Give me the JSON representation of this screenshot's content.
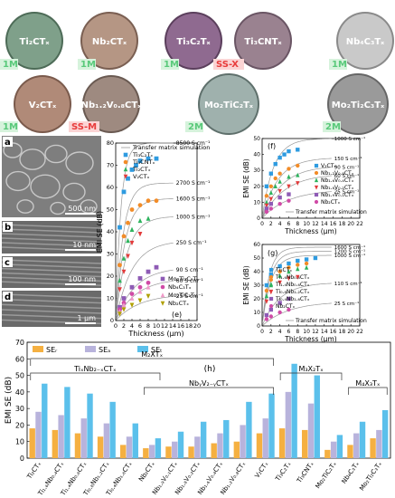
{
  "colors": {
    "blue": "#2e9be0",
    "orange": "#f28c28",
    "green": "#2db35d",
    "red": "#e23a3a",
    "purple": "#8e5bb5",
    "magenta": "#d04aa6",
    "pink": "#f09ac9",
    "olive": "#b0a000",
    "gray": "#888888",
    "bar_r": "#f5b041",
    "bar_a": "#b8b3dc",
    "bar_t": "#5bc0eb",
    "label_green": "#59c97a",
    "label_red": "#e83c3c"
  },
  "photos": {
    "items": [
      {
        "label": "Ti₂CTₓ",
        "tag": "1M",
        "fill": "#7fa08a",
        "edge": "#4d6b57"
      },
      {
        "label": "Nb₂CTₓ",
        "tag": "1M",
        "fill": "#b59684",
        "edge": "#7a5f52"
      },
      {
        "label": "Ti₃C₂Tₓ",
        "tag": "1M",
        "fill": "#8f6a90",
        "edge": "#5b3f5c"
      },
      {
        "label": "Ti₃CNTₓ",
        "tag": "SS-X",
        "fill": "#9a8290",
        "edge": "#6a5564"
      },
      {
        "label": "Nb₄C₃Tₓ",
        "tag": "1M",
        "fill": "#c9c9c9",
        "edge": "#8a8a8a"
      },
      {
        "label": "V₂CTₓ",
        "tag": "1M",
        "fill": "#b08a78",
        "edge": "#7a5a4c"
      },
      {
        "label": "Nb₁.₂V₀.₈CTₓ",
        "tag": "SS-M",
        "fill": "#9e8a80",
        "edge": "#6a5a52"
      },
      {
        "label": "Mo₂TiC₂Tₓ",
        "tag": "2M",
        "fill": "#9fb1ad",
        "edge": "#5f706c"
      },
      {
        "label": "Mo₂Ti₂C₃Tₓ",
        "tag": "2M",
        "fill": "#9a9a9a",
        "edge": "#666666"
      }
    ]
  },
  "sem": {
    "a": {
      "letter": "a",
      "scale": "500 nm"
    },
    "b": {
      "letter": "b",
      "scale": "10 nm"
    },
    "c": {
      "letter": "c",
      "scale": "100 nm"
    },
    "d": {
      "letter": "d",
      "scale": "1 μm"
    }
  },
  "chart_data": [
    {
      "panel": "e",
      "type": "scatter",
      "xlabel": "Thickness (μm)",
      "ylabel": "EMI SE (dB)",
      "xlim": [
        0,
        20
      ],
      "ylim": [
        0,
        80
      ],
      "xticks": [
        0,
        2,
        4,
        6,
        8,
        10,
        12,
        14,
        16,
        18,
        20
      ],
      "yticks": [
        0,
        10,
        20,
        30,
        40,
        50,
        60,
        70,
        80
      ],
      "legend_top": [
        "Transfer matrix simulation",
        "Ti₃C₂Tₓ",
        "Ti₃CNTₓ",
        "Ti₂CTₓ",
        "V₂CTₓ"
      ],
      "legend_bottom": [
        "Mo₂Ti₂C₃Tₓ",
        "Nb₄C₃Tₓ",
        "Mo₂TiC₂Tₓ",
        "Nb₂CTₓ"
      ],
      "curve_labels": [
        "8500 S cm⁻¹",
        "2700 S cm⁻¹",
        "1600 S cm⁻¹",
        "1000 S cm⁻¹",
        "250 S cm⁻¹",
        "90 S cm⁻¹",
        "60 S cm⁻¹",
        "25 S cm⁻¹"
      ],
      "series": [
        {
          "name": "Ti₃C₂Tₓ",
          "color": "#2e9be0",
          "marker": "square",
          "x": [
            1,
            2,
            3,
            4,
            5,
            6,
            8,
            10
          ],
          "y": [
            42,
            58,
            64,
            68,
            70,
            72,
            73,
            73
          ]
        },
        {
          "name": "Ti₃CNTₓ",
          "color": "#f28c28",
          "marker": "circle",
          "x": [
            1,
            2,
            3,
            4,
            6,
            8,
            10
          ],
          "y": [
            25,
            38,
            44,
            50,
            52,
            54,
            54
          ]
        },
        {
          "name": "Ti₂CTₓ",
          "color": "#2db35d",
          "marker": "triangle",
          "x": [
            1,
            2,
            3,
            4,
            6,
            8
          ],
          "y": [
            18,
            28,
            36,
            41,
            45,
            46
          ]
        },
        {
          "name": "V₂CTₓ",
          "color": "#e23a3a",
          "marker": "triangle-down",
          "x": [
            1,
            2,
            3,
            4,
            6
          ],
          "y": [
            14,
            22,
            29,
            35,
            39
          ]
        },
        {
          "name": "Mo₂Ti₂C₃Tₓ",
          "color": "#8e5bb5",
          "marker": "square",
          "x": [
            1,
            2,
            4,
            6,
            8,
            10
          ],
          "y": [
            6,
            10,
            15,
            19,
            22,
            24
          ]
        },
        {
          "name": "Nb₄C₃Tₓ",
          "color": "#d04aa6",
          "marker": "circle",
          "x": [
            1,
            2,
            4,
            6,
            8
          ],
          "y": [
            5,
            8,
            12,
            15,
            17
          ]
        },
        {
          "name": "Mo₂TiC₂Tₓ",
          "color": "#f09ac9",
          "marker": "triangle",
          "x": [
            1,
            2,
            4,
            6,
            8
          ],
          "y": [
            4,
            7,
            10,
            13,
            15
          ]
        },
        {
          "name": "Nb₂CTₓ",
          "color": "#b0a000",
          "marker": "triangle-down",
          "x": [
            1,
            2,
            4,
            6,
            8
          ],
          "y": [
            3,
            5,
            7,
            9,
            11
          ]
        }
      ],
      "curves": [
        {
          "label_index": 0,
          "asym": 80,
          "k": 0.55
        },
        {
          "label_index": 1,
          "asym": 62,
          "k": 0.38
        },
        {
          "label_index": 2,
          "asym": 55,
          "k": 0.32
        },
        {
          "label_index": 3,
          "asym": 47,
          "k": 0.26
        },
        {
          "label_index": 4,
          "asym": 36,
          "k": 0.18
        },
        {
          "label_index": 5,
          "asym": 24,
          "k": 0.15
        },
        {
          "label_index": 6,
          "asym": 19,
          "k": 0.14
        },
        {
          "label_index": 7,
          "asym": 12,
          "k": 0.12
        }
      ]
    },
    {
      "panel": "f",
      "type": "scatter",
      "xlabel": "Thickness (μm)",
      "ylabel": "EMI SE (dB)",
      "xlim": [
        0,
        22
      ],
      "ylim": [
        0,
        50
      ],
      "xticks": [
        0,
        2,
        4,
        6,
        8,
        10,
        12,
        14,
        16,
        18,
        20,
        22
      ],
      "yticks": [
        0,
        10,
        20,
        30,
        40,
        50
      ],
      "legend": [
        "V₂CTₓ",
        "Nb₁.₂V₀.₈CTₓ",
        "Nb₁.₆V₀.₄CTₓ",
        "Nb₁.₈V₀.₂CTₓ",
        "Nb₁.₉V₀.₁CTₓ",
        "Nb₂CTₓ"
      ],
      "curve_labels": [
        "1000 S cm⁻¹",
        "150 S cm⁻¹",
        "90 S cm⁻¹",
        "60 S cm⁻¹",
        "25 S cm⁻¹"
      ],
      "note": "Transfer matrix simulation",
      "series": [
        {
          "name": "V₂CTₓ",
          "color": "#2e9be0",
          "marker": "square",
          "x": [
            1,
            2,
            3,
            4,
            5,
            6,
            8
          ],
          "y": [
            20,
            28,
            34,
            38,
            40,
            42,
            43
          ]
        },
        {
          "name": "Nb₁.₂V₀.₈CTₓ",
          "color": "#f28c28",
          "marker": "circle",
          "x": [
            1,
            2,
            3,
            4,
            6,
            8
          ],
          "y": [
            14,
            20,
            25,
            28,
            31,
            33
          ]
        },
        {
          "name": "Nb₁.₆V₀.₄CTₓ",
          "color": "#2db35d",
          "marker": "triangle",
          "x": [
            1,
            2,
            3,
            4,
            6,
            8
          ],
          "y": [
            10,
            16,
            20,
            23,
            26,
            27
          ]
        },
        {
          "name": "Nb₁.₈V₀.₂CTₓ",
          "color": "#e23a3a",
          "marker": "triangle-down",
          "x": [
            1,
            2,
            4,
            6,
            8
          ],
          "y": [
            8,
            12,
            17,
            20,
            22
          ]
        },
        {
          "name": "Nb₁.₉V₀.₁CTₓ",
          "color": "#8e5bb5",
          "marker": "square",
          "x": [
            1,
            2,
            4,
            6
          ],
          "y": [
            6,
            9,
            13,
            15
          ]
        },
        {
          "name": "Nb₂CTₓ",
          "color": "#d04aa6",
          "marker": "circle",
          "x": [
            1,
            2,
            4,
            6
          ],
          "y": [
            4,
            6,
            9,
            11
          ]
        }
      ],
      "curves": [
        {
          "label_index": 0,
          "asym": 50,
          "k": 0.28
        },
        {
          "label_index": 1,
          "asym": 38,
          "k": 0.2
        },
        {
          "label_index": 2,
          "asym": 33,
          "k": 0.16
        },
        {
          "label_index": 3,
          "asym": 28,
          "k": 0.14
        },
        {
          "label_index": 4,
          "asym": 18,
          "k": 0.12
        }
      ]
    },
    {
      "panel": "g",
      "type": "scatter",
      "xlabel": "Thickness (μm)",
      "ylabel": "EMI SE (dB)",
      "xlim": [
        0,
        22
      ],
      "ylim": [
        0,
        60
      ],
      "xticks": [
        0,
        2,
        4,
        6,
        8,
        10,
        12,
        14,
        16,
        18,
        20,
        22
      ],
      "yticks": [
        0,
        10,
        20,
        30,
        40,
        50,
        60
      ],
      "legend": [
        "Ti₂CTₓ",
        "Ti₁.₆Nb₀.₄CTₓ",
        "Ti₁.₄Nb₀.₆CTₓ",
        "Ti₀.₈Nb₁.₂CTₓ",
        "Ti₀.₄Nb₁.₆CTₓ",
        "Nb₂CTₓ"
      ],
      "curve_labels": [
        "1600 S cm⁻¹",
        "1200 S cm⁻¹",
        "1000 S cm⁻¹",
        "110 S cm⁻¹",
        "25 S cm⁻¹"
      ],
      "note": "Transfer matrix simulation",
      "series": [
        {
          "name": "Ti₂CTₓ",
          "color": "#2e9be0",
          "marker": "square",
          "x": [
            1,
            2,
            4,
            6,
            8,
            10,
            12
          ],
          "y": [
            30,
            38,
            44,
            46,
            48,
            49,
            50
          ]
        },
        {
          "name": "Ti₁.₆Nb₀.₄CTₓ",
          "color": "#f28c28",
          "marker": "circle",
          "x": [
            1,
            2,
            4,
            6,
            8,
            10
          ],
          "y": [
            26,
            34,
            40,
            43,
            45,
            46
          ]
        },
        {
          "name": "Ti₁.₄Nb₀.₆CTₓ",
          "color": "#2db35d",
          "marker": "triangle",
          "x": [
            1,
            2,
            4,
            6,
            8,
            10
          ],
          "y": [
            22,
            30,
            37,
            40,
            42,
            43
          ]
        },
        {
          "name": "Ti₀.₈Nb₁.₂CTₓ",
          "color": "#e23a3a",
          "marker": "triangle-down",
          "x": [
            1,
            2,
            4,
            6,
            8
          ],
          "y": [
            18,
            25,
            32,
            35,
            36
          ]
        },
        {
          "name": "Ti₀.₄Nb₁.₆CTₓ",
          "color": "#8e5bb5",
          "marker": "square",
          "x": [
            1,
            2,
            4,
            6
          ],
          "y": [
            8,
            12,
            17,
            20
          ]
        },
        {
          "name": "Nb₂CTₓ",
          "color": "#d04aa6",
          "marker": "circle",
          "x": [
            1,
            2,
            4,
            6
          ],
          "y": [
            5,
            7,
            10,
            12
          ]
        }
      ],
      "curves": [
        {
          "label_index": 0,
          "asym": 58,
          "k": 0.45
        },
        {
          "label_index": 1,
          "asym": 55,
          "k": 0.4
        },
        {
          "label_index": 2,
          "asym": 52,
          "k": 0.36
        },
        {
          "label_index": 3,
          "asym": 32,
          "k": 0.18
        },
        {
          "label_index": 4,
          "asym": 18,
          "k": 0.12
        }
      ]
    },
    {
      "panel": "h",
      "type": "bar",
      "ylabel": "EMI SE (dB)",
      "ylim": [
        0,
        70
      ],
      "yticks": [
        0,
        10,
        20,
        30,
        40,
        50,
        60,
        70
      ],
      "legend": [
        "SEᵣ",
        "SEₐ",
        "SEₜ"
      ],
      "categories": [
        "Ti₂CTₓ",
        "Ti₁.₆Nb₀.₄CTₓ",
        "Ti₁.₄Nb₀.₆CTₓ",
        "Ti₀.₈Nb₁.₂CTₓ",
        "Ti₀.₄Nb₁.₆CTₓ",
        "Nb₂CTₓ",
        "Nb₁.₉V₀.₁CTₓ",
        "Nb₁.₈V₀.₂CTₓ",
        "Nb₁.₆V₀.₄CTₓ",
        "Nb₁.₂V₀.₈CTₓ",
        "V₂CTₓ",
        "Ti₃C₂Tₓ",
        "Ti₃CNTₓ",
        "Mo₂TiC₂Tₓ",
        "Nb₄C₃Tₓ",
        "Mo₂Ti₂C₃Tₓ"
      ],
      "series": [
        {
          "name": "SEᵣ",
          "color": "#f5b041",
          "values": [
            18,
            17,
            15,
            13,
            8,
            6,
            7,
            7,
            9,
            10,
            15,
            18,
            17,
            5,
            8,
            12
          ]
        },
        {
          "name": "SEₐ",
          "color": "#b8b3dc",
          "values": [
            28,
            26,
            24,
            21,
            13,
            8,
            10,
            13,
            15,
            20,
            24,
            40,
            33,
            10,
            15,
            17
          ]
        },
        {
          "name": "SEₜ",
          "color": "#5bc0eb",
          "values": [
            45,
            43,
            39,
            34,
            21,
            12,
            16,
            22,
            23,
            34,
            39,
            57,
            50,
            14,
            22,
            29
          ]
        }
      ],
      "group_labels": [
        {
          "text": "M₂XTₓ",
          "from": 0,
          "to": 10,
          "level": 3
        },
        {
          "text": "TiₓNb₂₋ₓCTₓ",
          "from": 0,
          "to": 5,
          "level": 2
        },
        {
          "text": "NbᵧV₂₋ᵧCTₓ",
          "from": 5,
          "to": 10,
          "level": 1
        },
        {
          "text": "M₃X₂Tₓ",
          "from": 11,
          "to": 13,
          "level": 2
        },
        {
          "text": "M₄X₃Tₓ",
          "from": 14,
          "to": 15,
          "level": 1
        }
      ],
      "panel_letter": "(h)"
    }
  ]
}
